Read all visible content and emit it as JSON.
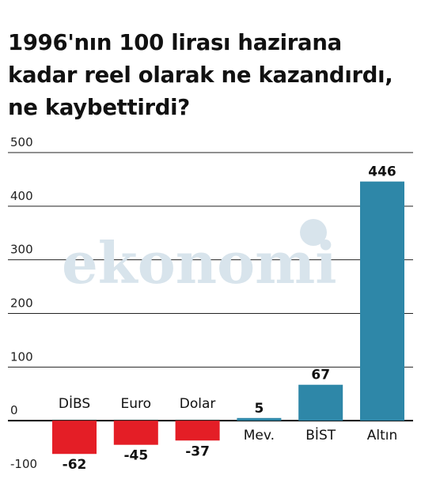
{
  "title_lines": [
    "1996'nın 100 lirası hazirana",
    "kadar reel olarak ne kazandırdı,",
    "ne kaybettirdi?"
  ],
  "watermark": "ekonomi",
  "colors": {
    "negative": "#e41e26",
    "positive": "#2e87a8",
    "gridline": "#222222",
    "zero_line": "#111111",
    "watermark": "#d8e4ec"
  },
  "chart_data": {
    "type": "bar",
    "title": "1996'nın 100 lirası hazirana kadar reel olarak ne kazandırdı, ne kaybettirdi?",
    "categories": [
      "DİBS",
      "Euro",
      "Dolar",
      "Mev.",
      "BİST",
      "Altın"
    ],
    "values": [
      -62,
      -45,
      -37,
      5,
      67,
      446
    ],
    "value_labels": [
      "-62",
      "-45",
      "-37",
      "5",
      "67",
      "446"
    ],
    "ylim": [
      -100,
      500
    ],
    "yticks": [
      500,
      400,
      300,
      200,
      100,
      0,
      -100
    ],
    "ytick_labels": [
      "500",
      "400",
      "300",
      "200",
      "100",
      "0",
      "-100"
    ],
    "grid": true,
    "xlabel": "",
    "ylabel": ""
  }
}
